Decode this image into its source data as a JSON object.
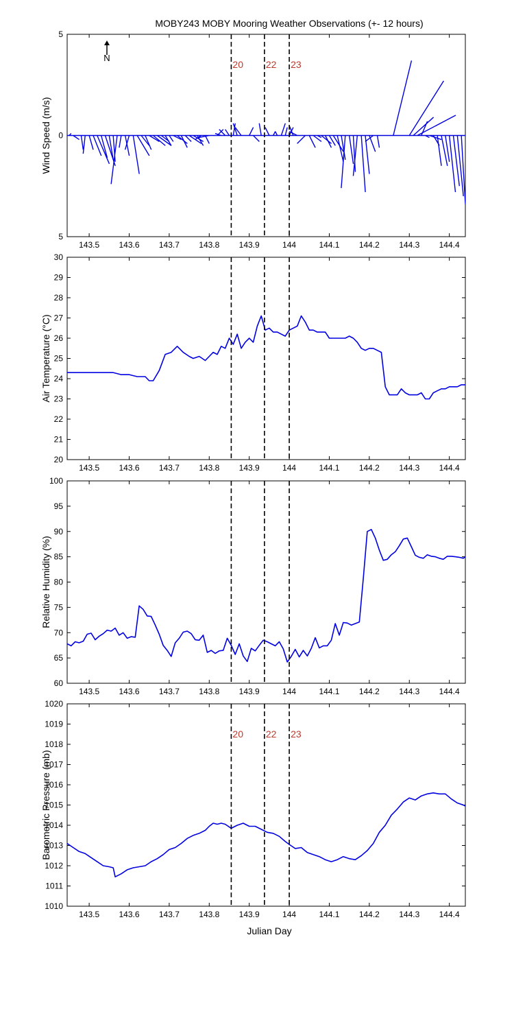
{
  "figure": {
    "title": "MOBY243 MOBY Mooring Weather Observations (+- 12 hours)",
    "xlabel": "Julian Day",
    "north_label": "N",
    "colors": {
      "series": "#0000e0",
      "marker_text": "#c0392b",
      "axis": "#000000",
      "background": "#ffffff"
    }
  },
  "chart_data": [
    {
      "type": "line",
      "subtype": "wind-stick",
      "ylabel": "Wind Speed (m/s)",
      "xlim": [
        143.445,
        144.44
      ],
      "ylim": [
        -5,
        5
      ],
      "y_ticks": [
        5,
        0,
        5
      ],
      "x_ticks": [
        143.5,
        143.6,
        143.7,
        143.8,
        143.9,
        144,
        144.1,
        144.2,
        144.3,
        144.4
      ],
      "x_tick_labels": [
        "143.5",
        "143.6",
        "143.7",
        "143.8",
        "143.9",
        "144",
        "144.1",
        "144.2",
        "144.3",
        "144.4"
      ],
      "event_lines": [
        {
          "x": 143.855,
          "label": "20"
        },
        {
          "x": 143.938,
          "label": "22"
        },
        {
          "x": 144.0,
          "label": "23"
        }
      ],
      "series": [
        {
          "x": [
            143.45,
            143.46,
            143.48,
            143.49,
            143.5,
            143.51,
            143.52,
            143.53,
            143.54,
            143.55,
            143.56,
            143.57,
            143.58,
            143.59,
            143.6,
            143.61,
            143.62,
            143.63,
            143.64,
            143.65,
            143.66,
            143.67,
            143.68,
            143.69,
            143.7,
            143.71,
            143.72,
            143.73,
            143.74,
            143.75,
            143.76,
            143.77,
            143.78,
            143.79,
            143.8,
            143.82,
            143.83,
            143.84,
            143.85,
            143.86,
            143.87,
            143.88,
            143.9,
            143.91,
            143.93,
            143.95,
            143.96,
            143.97,
            143.98,
            143.99,
            144.0,
            144.01,
            144.02,
            144.04,
            144.05,
            144.06,
            144.07,
            144.08,
            144.09,
            144.1,
            144.11,
            144.12,
            144.13,
            144.14,
            144.15,
            144.16,
            144.17,
            144.18,
            144.19,
            144.2,
            144.21,
            144.22,
            144.26,
            144.3,
            144.31,
            144.32,
            144.33,
            144.34,
            144.35,
            144.36,
            144.37,
            144.38,
            144.39,
            144.4,
            144.41,
            144.42,
            144.43
          ],
          "u": [
            0.1,
            0.3,
            0.1,
            -0.1,
            0.2,
            0.4,
            0.6,
            0.3,
            0.5,
            0.2,
            0.1,
            -0.3,
            -0.1,
            0.2,
            -0.2,
            0.3,
            0.6,
            0.4,
            0.3,
            0.5,
            0.6,
            0.7,
            0.4,
            0.3,
            0.2,
            0.4,
            0.5,
            0.3,
            0.3,
            0.6,
            0.5,
            0.3,
            -0.3,
            0.2,
            -0.5,
            0.3,
            -0.3,
            -0.3,
            -0.2,
            0.1,
            -0.2,
            -0.3,
            0.2,
            0.3,
            -0.1,
            -0.2,
            0.1,
            -0.1,
            0.2,
            0.1,
            0.2,
            -0.2,
            -0.4,
            -0.4,
            0.3,
            0.4,
            0.2,
            0.5,
            0.3,
            0.3,
            0.5,
            0.3,
            0.2,
            -0.2,
            0.2,
            0.1,
            -0.2,
            0.2,
            0.2,
            0.3,
            -0.4,
            0.1,
            0.9,
            1.7,
            1.0,
            1.9,
            0.3,
            0.2,
            0.6,
            0.3,
            0.2,
            0.3,
            0.2,
            0.3,
            0.3,
            0.3,
            0.2
          ],
          "v": [
            0.1,
            -0.2,
            -0.7,
            -0.9,
            -0.7,
            -1.0,
            -1.4,
            -1.1,
            -1.5,
            -1.2,
            -1.3,
            -2.4,
            -0.6,
            -1.0,
            -0.7,
            -1.9,
            -1.0,
            -0.5,
            -0.7,
            -0.3,
            -0.5,
            -0.5,
            -0.3,
            -0.5,
            -0.3,
            -0.2,
            -0.4,
            -0.6,
            -0.3,
            -0.4,
            -0.3,
            -0.5,
            -0.2,
            -0.4,
            -0.1,
            0.3,
            0.1,
            0.3,
            0.3,
            0.6,
            0.6,
            0.4,
            0.4,
            -0.3,
            0.6,
            0.4,
            0.2,
            0.2,
            0.6,
            0.4,
            0.4,
            0.5,
            0.2,
            -0.4,
            -0.6,
            -0.3,
            -0.1,
            -0.4,
            -0.6,
            -0.5,
            -0.8,
            -1.3,
            -1.2,
            -2.6,
            -1.4,
            -1.8,
            -2.0,
            -2.8,
            -1.9,
            -0.8,
            -0.3,
            -0.6,
            3.7,
            2.7,
            0.9,
            1.0,
            0.7,
            -0.1,
            -0.2,
            -0.5,
            -1.5,
            -1.5,
            -1.3,
            -2.8,
            -2.5,
            -3.0,
            -3.4
          ]
        }
      ]
    },
    {
      "type": "line",
      "ylabel": "Air Temperature (°C)",
      "xlim": [
        143.445,
        144.44
      ],
      "ylim": [
        20,
        30
      ],
      "y_ticks": [
        20,
        21,
        22,
        23,
        24,
        25,
        26,
        27,
        28,
        29,
        30
      ],
      "x_ticks": [
        143.5,
        143.6,
        143.7,
        143.8,
        143.9,
        144,
        144.1,
        144.2,
        144.3,
        144.4
      ],
      "x_tick_labels": [
        "143.5",
        "143.6",
        "143.7",
        "143.8",
        "143.9",
        "144",
        "144.1",
        "144.2",
        "144.3",
        "144.4"
      ],
      "event_lines": [
        {
          "x": 143.855,
          "label": ""
        },
        {
          "x": 143.938,
          "label": ""
        },
        {
          "x": 144.0,
          "label": ""
        }
      ],
      "series": [
        {
          "x": [
            143.445,
            143.46,
            143.48,
            143.5,
            143.52,
            143.54,
            143.56,
            143.58,
            143.6,
            143.62,
            143.64,
            143.65,
            143.66,
            143.675,
            143.69,
            143.705,
            143.72,
            143.735,
            143.75,
            143.76,
            143.775,
            143.79,
            143.8,
            143.81,
            143.82,
            143.83,
            143.84,
            143.85,
            143.86,
            143.87,
            143.88,
            143.89,
            143.9,
            143.91,
            143.92,
            143.93,
            143.94,
            143.95,
            143.96,
            143.97,
            143.98,
            143.99,
            144.0,
            144.01,
            144.02,
            144.03,
            144.04,
            144.05,
            144.06,
            144.07,
            144.08,
            144.09,
            144.1,
            144.12,
            144.13,
            144.14,
            144.15,
            144.16,
            144.17,
            144.18,
            144.19,
            144.2,
            144.21,
            144.22,
            144.23,
            144.24,
            144.25,
            144.26,
            144.27,
            144.28,
            144.29,
            144.3,
            144.31,
            144.32,
            144.33,
            144.34,
            144.35,
            144.36,
            144.37,
            144.38,
            144.39,
            144.4,
            144.41,
            144.42,
            144.43,
            144.44
          ],
          "y": [
            24.3,
            24.3,
            24.3,
            24.3,
            24.3,
            24.3,
            24.3,
            24.2,
            24.2,
            24.1,
            24.1,
            23.9,
            23.9,
            24.4,
            25.2,
            25.3,
            25.6,
            25.3,
            25.1,
            25.0,
            25.1,
            24.9,
            25.1,
            25.3,
            25.2,
            25.6,
            25.5,
            26.0,
            25.7,
            26.2,
            25.5,
            25.8,
            26.0,
            25.8,
            26.6,
            27.1,
            26.4,
            26.5,
            26.3,
            26.3,
            26.2,
            26.1,
            26.4,
            26.5,
            26.6,
            27.1,
            26.8,
            26.4,
            26.4,
            26.3,
            26.3,
            26.3,
            26.0,
            26.0,
            26.0,
            26.0,
            26.1,
            26.0,
            25.8,
            25.5,
            25.4,
            25.5,
            25.5,
            25.4,
            25.3,
            23.6,
            23.2,
            23.2,
            23.2,
            23.5,
            23.3,
            23.2,
            23.2,
            23.2,
            23.3,
            23.0,
            23.0,
            23.3,
            23.4,
            23.5,
            23.5,
            23.6,
            23.6,
            23.6,
            23.7,
            23.7
          ]
        }
      ]
    },
    {
      "type": "line",
      "ylabel": "Relative Humidity (%)",
      "xlim": [
        143.445,
        144.44
      ],
      "ylim": [
        60,
        100
      ],
      "y_ticks": [
        60,
        65,
        70,
        75,
        80,
        85,
        90,
        95,
        100
      ],
      "x_ticks": [
        143.5,
        143.6,
        143.7,
        143.8,
        143.9,
        144,
        144.1,
        144.2,
        144.3,
        144.4
      ],
      "x_tick_labels": [
        "143.5",
        "143.6",
        "143.7",
        "143.8",
        "143.9",
        "144",
        "144.1",
        "144.2",
        "144.3",
        "144.4"
      ],
      "event_lines": [
        {
          "x": 143.855,
          "label": ""
        },
        {
          "x": 143.938,
          "label": ""
        },
        {
          "x": 144.0,
          "label": ""
        }
      ],
      "series": [
        {
          "x": [
            143.445,
            143.455,
            143.465,
            143.475,
            143.485,
            143.495,
            143.505,
            143.515,
            143.525,
            143.535,
            143.545,
            143.555,
            143.565,
            143.575,
            143.585,
            143.595,
            143.605,
            143.615,
            143.625,
            143.635,
            143.645,
            143.655,
            143.665,
            143.675,
            143.685,
            143.695,
            143.705,
            143.715,
            143.725,
            143.735,
            143.745,
            143.755,
            143.765,
            143.775,
            143.785,
            143.795,
            143.805,
            143.815,
            143.825,
            143.835,
            143.845,
            143.855,
            143.865,
            143.875,
            143.885,
            143.895,
            143.905,
            143.915,
            143.925,
            143.935,
            143.945,
            143.955,
            143.965,
            143.975,
            143.985,
            143.995,
            144.005,
            144.015,
            144.025,
            144.035,
            144.045,
            144.055,
            144.065,
            144.075,
            144.085,
            144.095,
            144.105,
            144.115,
            144.125,
            144.135,
            144.145,
            144.155,
            144.165,
            144.175,
            144.185,
            144.195,
            144.205,
            144.215,
            144.225,
            144.235,
            144.245,
            144.255,
            144.265,
            144.275,
            144.285,
            144.295,
            144.305,
            144.315,
            144.325,
            144.335,
            144.345,
            144.355,
            144.365,
            144.375,
            144.385,
            144.395,
            144.405,
            144.415,
            144.425,
            144.435,
            144.44
          ],
          "y": [
            67.8,
            67.4,
            68.2,
            68.0,
            68.3,
            69.7,
            69.9,
            68.6,
            69.3,
            69.8,
            70.5,
            70.3,
            70.9,
            69.5,
            70.0,
            68.9,
            69.2,
            69.1,
            75.3,
            74.6,
            73.3,
            73.2,
            71.5,
            69.7,
            67.5,
            66.5,
            65.3,
            68.0,
            68.9,
            70.1,
            70.3,
            69.8,
            68.6,
            68.5,
            69.5,
            66.1,
            66.5,
            65.9,
            66.4,
            66.5,
            68.9,
            67.5,
            65.7,
            67.8,
            65.4,
            64.3,
            66.9,
            66.4,
            67.5,
            68.5,
            68.2,
            67.8,
            67.4,
            68.2,
            66.8,
            64.2,
            65.3,
            66.7,
            65.2,
            66.5,
            65.4,
            66.9,
            69.0,
            67.0,
            67.4,
            67.4,
            68.5,
            71.8,
            69.5,
            72.0,
            71.9,
            71.5,
            71.8,
            72.1,
            80.7,
            90.0,
            90.4,
            88.7,
            86.3,
            84.3,
            84.5,
            85.4,
            86.0,
            87.2,
            88.5,
            88.7,
            87.0,
            85.3,
            84.9,
            84.7,
            85.4,
            85.1,
            85.0,
            84.7,
            84.5,
            85.1,
            85.1,
            85.0,
            84.9,
            84.7,
            85.0
          ]
        }
      ]
    },
    {
      "type": "line",
      "ylabel": "Barometric Pressure (mb)",
      "xlim": [
        143.445,
        144.44
      ],
      "ylim": [
        1010,
        1020
      ],
      "y_ticks": [
        1010,
        1011,
        1012,
        1013,
        1014,
        1015,
        1016,
        1017,
        1018,
        1019,
        1020
      ],
      "x_ticks": [
        143.5,
        143.6,
        143.7,
        143.8,
        143.9,
        144,
        144.1,
        144.2,
        144.3,
        144.4
      ],
      "x_tick_labels": [
        "143.5",
        "143.6",
        "143.7",
        "143.8",
        "143.9",
        "144",
        "144.1",
        "144.2",
        "144.3",
        "144.4"
      ],
      "event_lines": [
        {
          "x": 143.855,
          "label": "20"
        },
        {
          "x": 143.938,
          "label": "22"
        },
        {
          "x": 144.0,
          "label": "23"
        }
      ],
      "series": [
        {
          "x": [
            143.445,
            143.46,
            143.475,
            143.49,
            143.505,
            143.52,
            143.535,
            143.55,
            143.56,
            143.565,
            143.58,
            143.595,
            143.61,
            143.625,
            143.64,
            143.655,
            143.67,
            143.685,
            143.7,
            143.715,
            143.73,
            143.745,
            143.76,
            143.775,
            143.79,
            143.8,
            143.81,
            143.82,
            143.83,
            143.84,
            143.855,
            143.87,
            143.885,
            143.9,
            143.915,
            143.93,
            143.945,
            143.96,
            143.975,
            143.99,
            144.0,
            144.015,
            144.03,
            144.045,
            144.06,
            144.075,
            144.09,
            144.105,
            144.12,
            144.135,
            144.15,
            144.165,
            144.18,
            144.195,
            144.21,
            144.225,
            144.24,
            144.255,
            144.27,
            144.285,
            144.3,
            144.315,
            144.33,
            144.345,
            144.36,
            144.375,
            144.39,
            144.405,
            144.42,
            144.435,
            144.44
          ],
          "y": [
            1013.1,
            1012.9,
            1012.7,
            1012.6,
            1012.4,
            1012.2,
            1012.0,
            1011.95,
            1011.9,
            1011.45,
            1011.6,
            1011.8,
            1011.9,
            1011.95,
            1012.0,
            1012.2,
            1012.35,
            1012.55,
            1012.8,
            1012.9,
            1013.1,
            1013.35,
            1013.5,
            1013.6,
            1013.75,
            1013.95,
            1014.1,
            1014.05,
            1014.1,
            1014.05,
            1013.85,
            1014.0,
            1014.1,
            1013.95,
            1013.95,
            1013.8,
            1013.65,
            1013.6,
            1013.45,
            1013.2,
            1013.05,
            1012.85,
            1012.9,
            1012.65,
            1012.55,
            1012.45,
            1012.3,
            1012.2,
            1012.3,
            1012.45,
            1012.35,
            1012.3,
            1012.5,
            1012.75,
            1013.1,
            1013.65,
            1014.0,
            1014.5,
            1014.8,
            1015.15,
            1015.35,
            1015.25,
            1015.45,
            1015.55,
            1015.6,
            1015.55,
            1015.55,
            1015.3,
            1015.1,
            1015.0,
            1014.95
          ]
        }
      ]
    }
  ]
}
